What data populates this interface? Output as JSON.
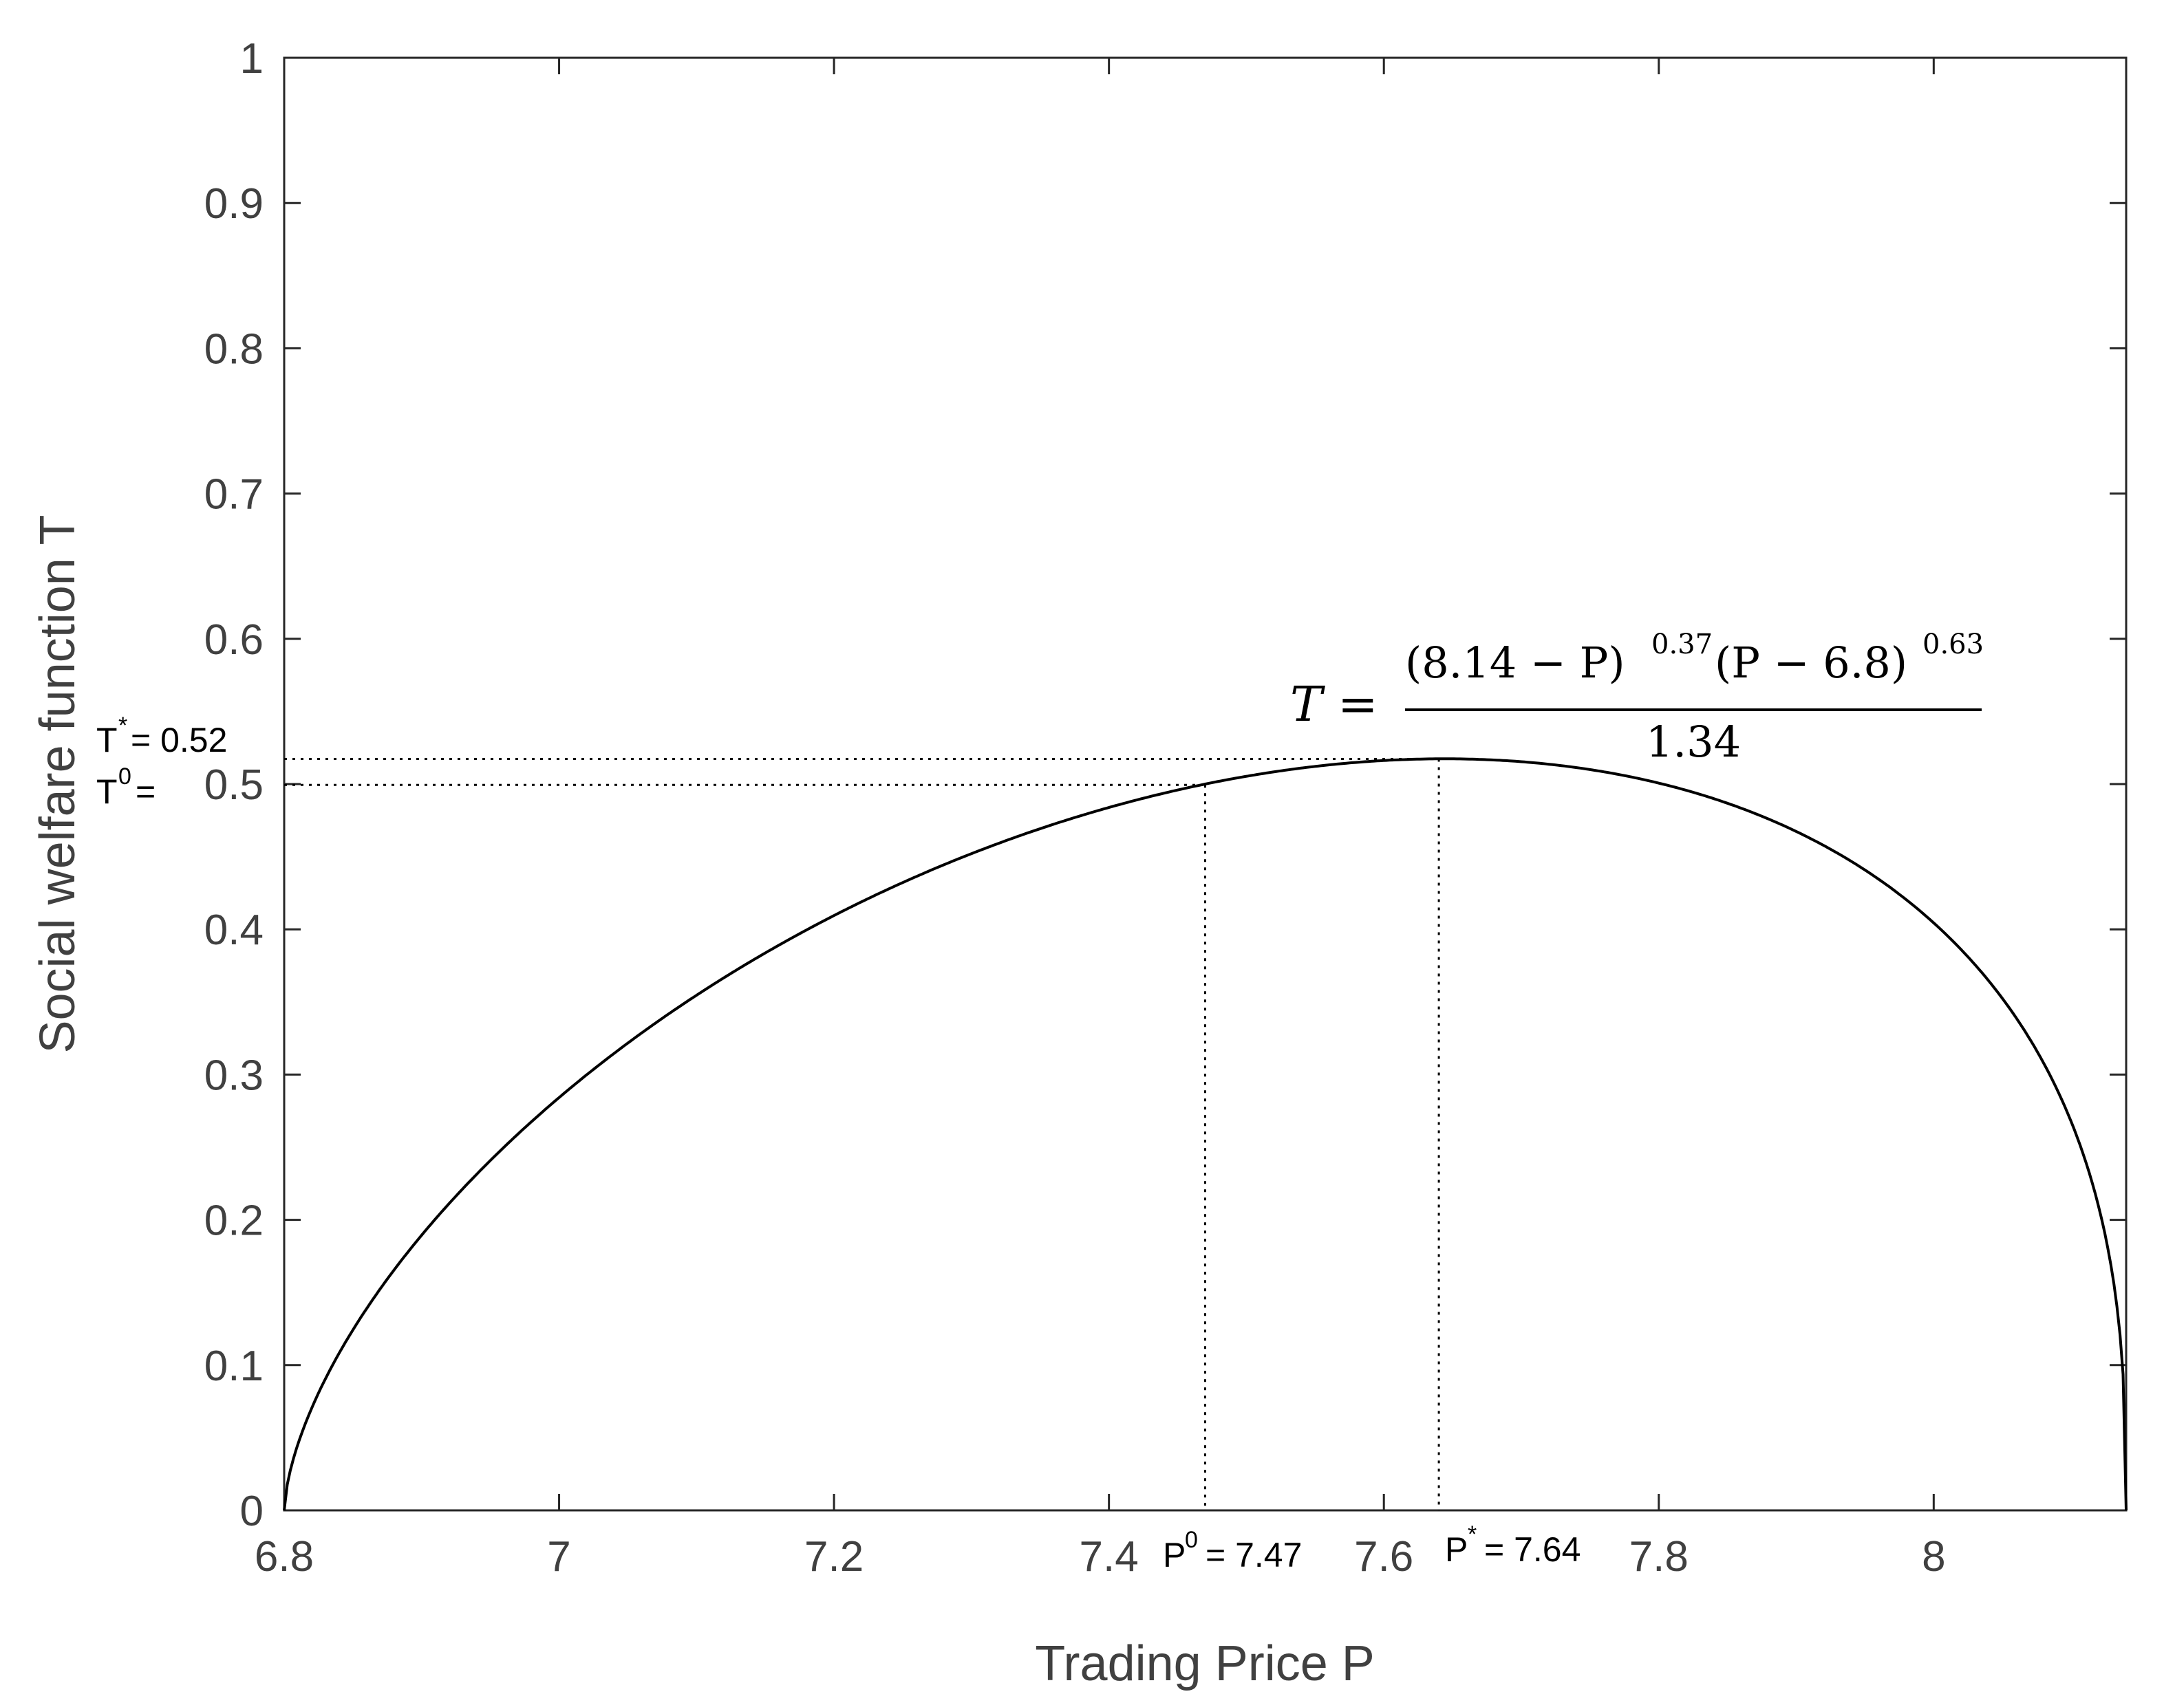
{
  "chart_data": {
    "type": "line",
    "xlabel": "Trading Price P",
    "ylabel": "Social welfare function T",
    "xlim": [
      6.8,
      8.14
    ],
    "ylim": [
      0,
      1
    ],
    "xticks": [
      "6.8",
      "7",
      "7.2",
      "7.4",
      "7.6",
      "7.8",
      "8"
    ],
    "xtick_values": [
      6.8,
      7.0,
      7.2,
      7.4,
      7.6,
      7.8,
      8.0
    ],
    "yticks": [
      "0",
      "0.1",
      "0.2",
      "0.3",
      "0.4",
      "0.5",
      "0.6",
      "0.7",
      "0.8",
      "0.9",
      "1"
    ],
    "ytick_values": [
      0,
      0.1,
      0.2,
      0.3,
      0.4,
      0.5,
      0.6,
      0.7,
      0.8,
      0.9,
      1.0
    ],
    "grid": false,
    "series": [
      {
        "formula": {
          "a": 8.14,
          "b": 6.8,
          "alpha": 0.37,
          "beta": 0.63,
          "divisor": 1.34
        },
        "line_color": "#000000"
      }
    ],
    "formula_label": {
      "lhs": "T =",
      "numerator": "(8.14 − P)",
      "exp1": "0.37",
      "numerator_mid": "(P − 6.8)",
      "exp2": "0.63",
      "denominator": "1.34"
    },
    "annotations": {
      "p0": {
        "prefix": "P",
        "sup": "0",
        "text": "= 7.47",
        "value": 7.47
      },
      "pstar": {
        "prefix": "P",
        "sup": "*",
        "text": "= 7.64",
        "value": 7.64
      },
      "tstar": {
        "prefix": "T",
        "sup": "*",
        "text": "= 0.52",
        "value": 0.5173
      },
      "t0": {
        "prefix": "T",
        "sup": "0",
        "text": "=",
        "value": 0.4994
      }
    }
  }
}
